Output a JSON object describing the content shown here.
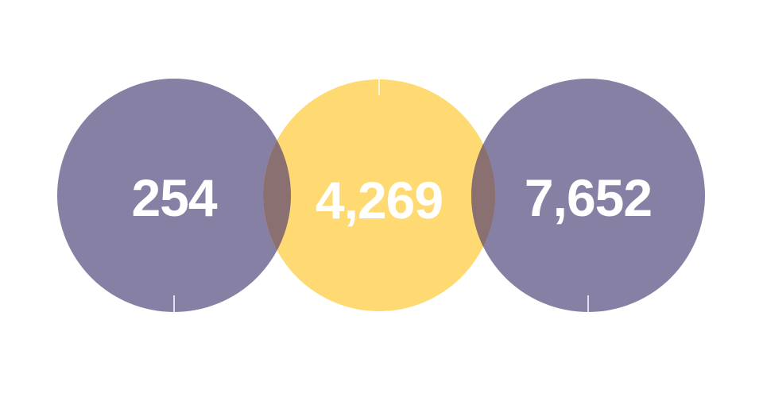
{
  "circles": [
    {
      "value": "254",
      "color": "#8780a5",
      "tick": "bottom"
    },
    {
      "value": "4,269",
      "color": "#ffd971",
      "tick": "top"
    },
    {
      "value": "7,652",
      "color": "#8780a5",
      "tick": "bottom"
    }
  ],
  "overlap_color": "#8a7070"
}
